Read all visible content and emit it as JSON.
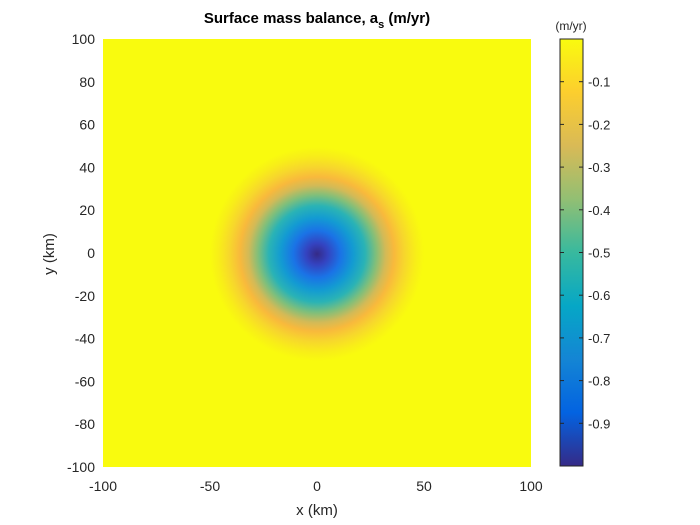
{
  "chart_data": {
    "type": "heatmap",
    "title": {
      "main": "Surface mass balance, a",
      "subscript": "s",
      "suffix": " (m/yr)"
    },
    "xlabel": "x (km)",
    "ylabel": "y (km)",
    "xlim": [
      -100,
      100
    ],
    "ylim": [
      -100,
      100
    ],
    "x_ticks": [
      -100,
      -50,
      0,
      50,
      100
    ],
    "y_ticks": [
      100,
      80,
      60,
      40,
      20,
      0,
      -20,
      -40,
      -60,
      -80,
      -100
    ],
    "field": {
      "description": "radially symmetric minimum centered at origin",
      "center": [
        0,
        0
      ],
      "min_value": -1.0,
      "max_value": 0.0
    },
    "colorbar": {
      "unit_label": "(m/yr)",
      "range": [
        -1.0,
        0.0
      ],
      "ticks": [
        -0.1,
        -0.2,
        -0.3,
        -0.4,
        -0.5,
        -0.6,
        -0.7,
        -0.8,
        -0.9
      ],
      "colormap": "parula",
      "colors": [
        "#352a87",
        "#0363e1",
        "#1485d4",
        "#06a7c6",
        "#38b99e",
        "#92bf73",
        "#d9ba56",
        "#fcce2e",
        "#f9fb0e"
      ]
    },
    "grid": false,
    "legend": "none"
  }
}
